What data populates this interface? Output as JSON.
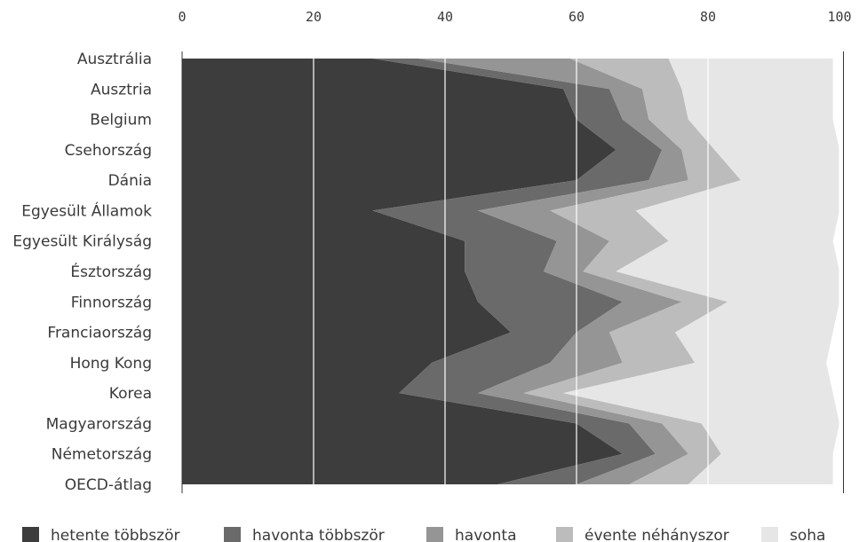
{
  "chart_data": {
    "type": "area",
    "orientation": "horizontal",
    "stacked": true,
    "categories": [
      "Ausztrália",
      "Ausztria",
      "Belgium",
      "Csehország",
      "Dánia",
      "Egyesült Államok",
      "Egyesült Királyság",
      "Észtország",
      "Finnország",
      "Franciaország",
      "Hong Kong",
      "Korea",
      "Magyarország",
      "Németország",
      "OECD-átlag"
    ],
    "series": [
      {
        "name": "hetente többször",
        "color": "#3d3d3d",
        "values": [
          29,
          58,
          60,
          66,
          60,
          29,
          43,
          43,
          45,
          50,
          38,
          33,
          60,
          67,
          48
        ]
      },
      {
        "name": "havonta többször",
        "color": "#6a6a6a",
        "values": [
          7,
          7,
          7,
          7,
          11,
          16,
          14,
          12,
          22,
          10,
          18,
          12,
          8,
          5,
          12
        ]
      },
      {
        "name": "havonta",
        "color": "#959595",
        "values": [
          23,
          5,
          4,
          3,
          6,
          11,
          8,
          6,
          9,
          5,
          11,
          7,
          5,
          5,
          8
        ]
      },
      {
        "name": "évente néhányszor",
        "color": "#bcbcbc",
        "values": [
          15,
          6,
          6,
          5,
          8,
          13,
          9,
          5,
          7,
          10,
          11,
          6,
          6,
          5,
          9
        ]
      },
      {
        "name": "soha",
        "color": "#e6e6e6",
        "values": [
          25,
          23,
          22,
          19,
          15,
          31,
          25,
          34,
          17,
          24,
          20,
          41,
          21,
          17,
          22
        ]
      }
    ],
    "xlim": [
      0,
      100
    ],
    "xticks": [
      "0",
      "20",
      "40",
      "60",
      "80",
      "100"
    ],
    "xtick_values": [
      0,
      20,
      40,
      60,
      80,
      100
    ],
    "grid": true,
    "xaxis_position": "top",
    "legend_position": "bottom"
  }
}
